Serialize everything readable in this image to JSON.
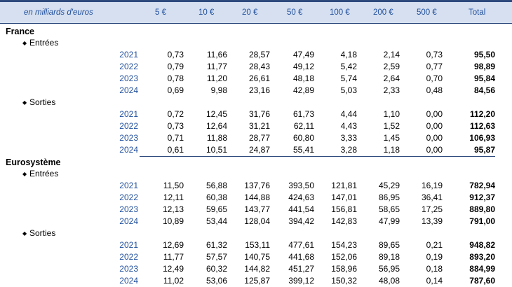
{
  "header": {
    "unit": "en milliards d'euros",
    "columns": [
      "5 €",
      "10 €",
      "20 €",
      "50 €",
      "100 €",
      "200 €",
      "500 €",
      "Total"
    ]
  },
  "sections": [
    {
      "name": "France",
      "flows": [
        {
          "label": "Entrées",
          "rows": [
            [
              "2021",
              "0,73",
              "11,66",
              "28,57",
              "47,49",
              "4,18",
              "2,14",
              "0,73",
              "95,50"
            ],
            [
              "2022",
              "0,79",
              "11,77",
              "28,43",
              "49,12",
              "5,42",
              "2,59",
              "0,77",
              "98,89"
            ],
            [
              "2023",
              "0,78",
              "11,20",
              "26,61",
              "48,18",
              "5,74",
              "2,64",
              "0,70",
              "95,84"
            ],
            [
              "2024",
              "0,69",
              "9,98",
              "23,16",
              "42,89",
              "5,03",
              "2,33",
              "0,48",
              "84,56"
            ]
          ]
        },
        {
          "label": "Sorties",
          "rows": [
            [
              "2021",
              "0,72",
              "12,45",
              "31,76",
              "61,73",
              "4,44",
              "1,10",
              "0,00",
              "112,20"
            ],
            [
              "2022",
              "0,73",
              "12,64",
              "31,21",
              "62,11",
              "4,43",
              "1,52",
              "0,00",
              "112,63"
            ],
            [
              "2023",
              "0,71",
              "11,88",
              "28,77",
              "60,80",
              "3,33",
              "1,45",
              "0,00",
              "106,93"
            ],
            [
              "2024",
              "0,61",
              "10,51",
              "24,87",
              "55,41",
              "3,28",
              "1,18",
              "0,00",
              "95,87"
            ]
          ]
        }
      ]
    },
    {
      "name": "Eurosystème",
      "flows": [
        {
          "label": "Entrées",
          "rows": [
            [
              "2021",
              "11,50",
              "56,88",
              "137,76",
              "393,50",
              "121,81",
              "45,29",
              "16,19",
              "782,94"
            ],
            [
              "2022",
              "12,11",
              "60,38",
              "144,88",
              "424,63",
              "147,01",
              "86,95",
              "36,41",
              "912,37"
            ],
            [
              "2023",
              "12,13",
              "59,65",
              "143,77",
              "441,54",
              "156,81",
              "58,65",
              "17,25",
              "889,80"
            ],
            [
              "2024",
              "10,89",
              "53,44",
              "128,04",
              "394,42",
              "142,83",
              "47,99",
              "13,39",
              "791,00"
            ]
          ]
        },
        {
          "label": "Sorties",
          "rows": [
            [
              "2021",
              "12,69",
              "61,32",
              "153,11",
              "477,61",
              "154,23",
              "89,65",
              "0,21",
              "948,82"
            ],
            [
              "2022",
              "11,77",
              "57,57",
              "140,75",
              "441,68",
              "152,06",
              "89,18",
              "0,19",
              "893,20"
            ],
            [
              "2023",
              "12,49",
              "60,32",
              "144,82",
              "451,27",
              "158,96",
              "56,95",
              "0,18",
              "884,99"
            ],
            [
              "2024",
              "11,02",
              "53,06",
              "125,87",
              "399,12",
              "150,32",
              "48,08",
              "0,14",
              "787,60"
            ]
          ]
        }
      ]
    }
  ]
}
